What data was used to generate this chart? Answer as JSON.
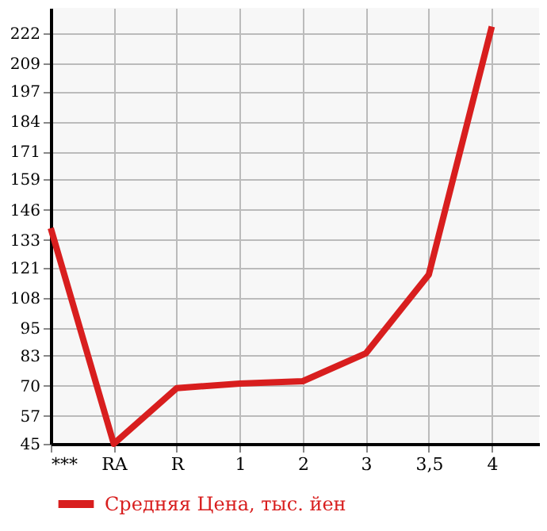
{
  "chart_data": {
    "type": "line",
    "categories": [
      "***",
      "RA",
      "R",
      "1",
      "2",
      "3",
      "3,5",
      "4"
    ],
    "series": [
      {
        "name": "Средняя Цена, тыс. йен",
        "color": "#d81e1e",
        "values": [
          138,
          45,
          69,
          71,
          72,
          84,
          118,
          225
        ]
      }
    ],
    "ylim": [
      45,
      233
    ],
    "yticks": [
      45,
      57,
      70,
      83,
      95,
      108,
      121,
      133,
      146,
      159,
      171,
      184,
      197,
      209,
      222
    ],
    "grid": true,
    "legend": "bottom",
    "marker": "none",
    "line_style": "solid"
  }
}
